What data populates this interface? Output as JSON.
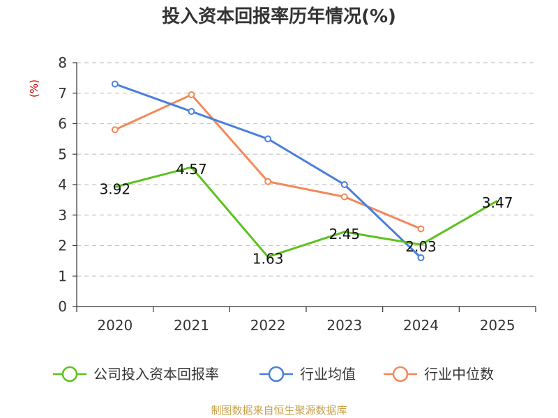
{
  "chart_data": {
    "type": "line",
    "title": "投入资本回报率历年情况(%)",
    "ylabel": "(%)",
    "categories": [
      "2020",
      "2021",
      "2022",
      "2023",
      "2024",
      "2025"
    ],
    "ylim": [
      0,
      8
    ],
    "yticks": [
      0,
      1,
      2,
      3,
      4,
      5,
      6,
      7,
      8
    ],
    "grid": true,
    "legend_position": "bottom",
    "series": [
      {
        "name": "公司投入资本回报率",
        "color": "#5cc21f",
        "values": [
          3.92,
          4.57,
          1.63,
          2.45,
          2.03,
          3.47
        ],
        "labels": [
          "3.92",
          "4.57",
          "1.63",
          "2.45",
          "2.03",
          "3.47"
        ]
      },
      {
        "name": "行业均值",
        "color": "#4a7fdc",
        "values": [
          7.3,
          6.4,
          5.5,
          4.0,
          1.6,
          null
        ]
      },
      {
        "name": "行业中位数",
        "color": "#f4885a",
        "values": [
          5.8,
          6.95,
          4.1,
          3.6,
          2.55,
          null
        ]
      }
    ],
    "source": "制图数据来自恒生聚源数据库"
  }
}
